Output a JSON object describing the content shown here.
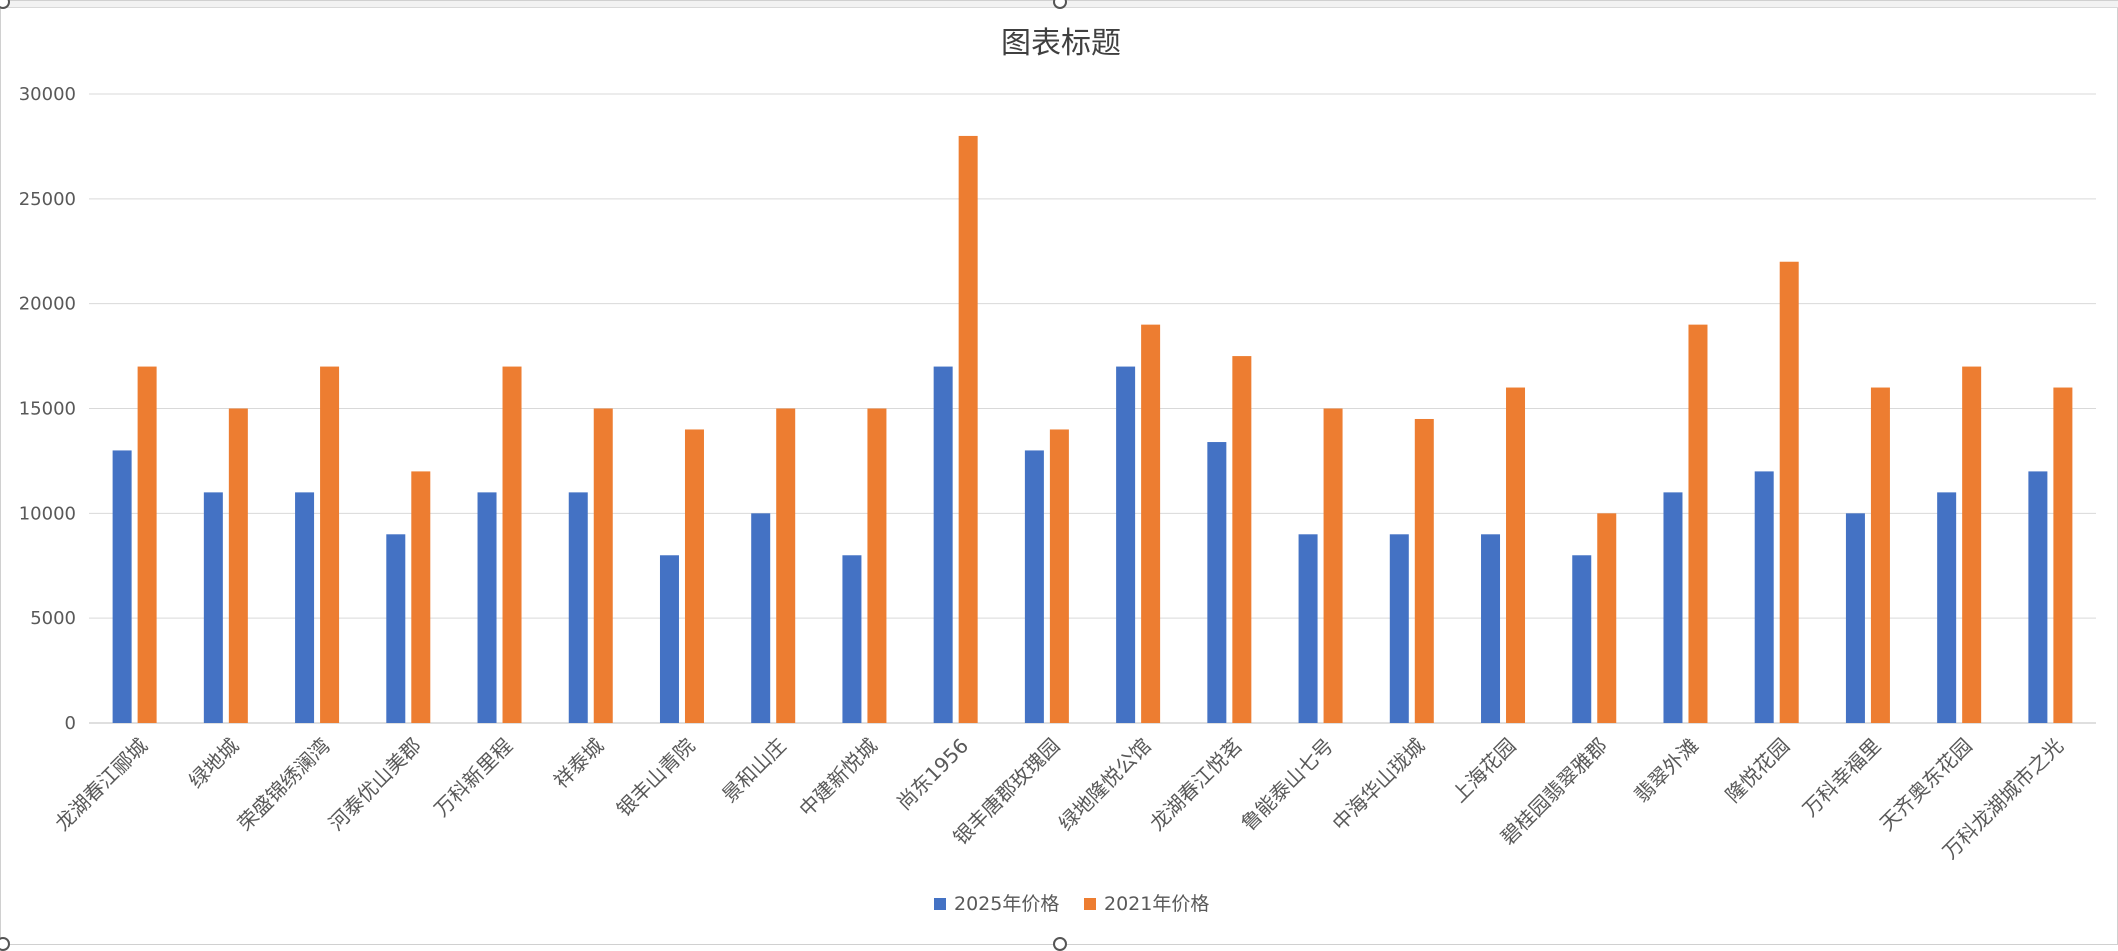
{
  "chart_data": {
    "type": "bar",
    "title": "图表标题",
    "xlabel": "",
    "ylabel": "",
    "ylim": [
      0,
      30000
    ],
    "yticks": [
      0,
      5000,
      10000,
      15000,
      20000,
      25000,
      30000
    ],
    "grid": true,
    "legend": "bottom",
    "categories": [
      "龙湖春江郦城",
      "绿地城",
      "荣盛锦绣澜湾",
      "河泰优山美郡",
      "万科新里程",
      "祥泰城",
      "银丰山青院",
      "景和山庄",
      "中建新悦城",
      "尚东1956",
      "银丰唐郡玫瑰园",
      "绿地隆悦公馆",
      "龙湖春江悦茗",
      "鲁能泰山七号",
      "中海华山珑城",
      "上海花园",
      "碧桂园翡翠雅郡",
      "翡翠外滩",
      "隆悦花园",
      "万科幸福里",
      "天齐奥东花园",
      "万科龙湖城市之光"
    ],
    "series": [
      {
        "name": "2025年价格",
        "color": "#4472C4",
        "values": [
          13000,
          11000,
          11000,
          9000,
          11000,
          11000,
          8000,
          10000,
          8000,
          17000,
          13000,
          17000,
          13400,
          9000,
          9000,
          9000,
          8000,
          11000,
          12000,
          10000,
          11000,
          12000
        ]
      },
      {
        "name": "2021年价格",
        "color": "#ED7D31",
        "values": [
          17000,
          15000,
          17000,
          12000,
          17000,
          15000,
          14000,
          15000,
          15000,
          28000,
          14000,
          19000,
          17500,
          15000,
          14500,
          16000,
          10000,
          19000,
          22000,
          16000,
          17000,
          16000
        ]
      }
    ]
  }
}
